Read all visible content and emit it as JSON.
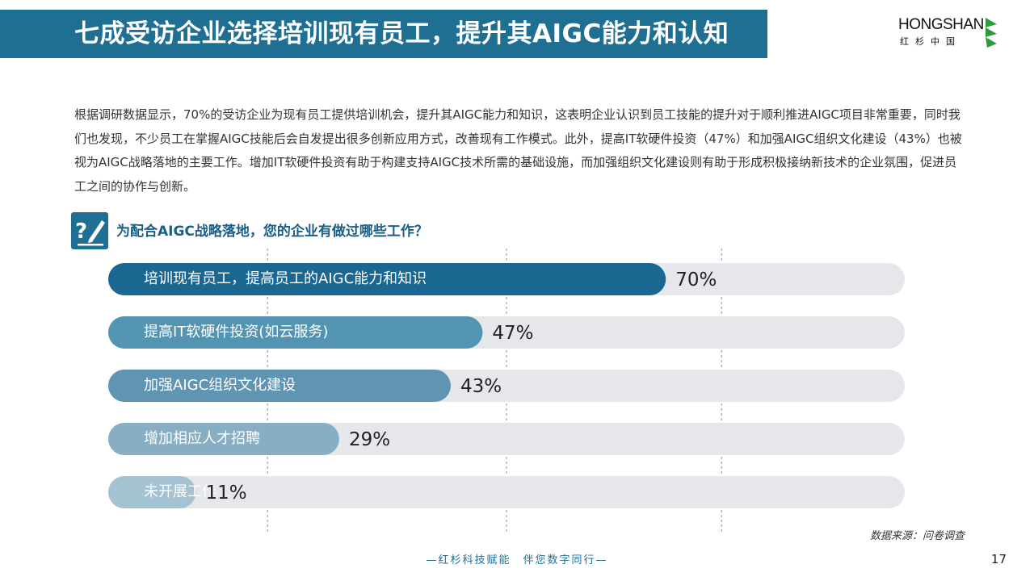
{
  "header": {
    "title": "七成受访企业选择培训现有员工，提升其AIGC能力和认知"
  },
  "logo": {
    "name_en": "HONGSHAN",
    "name_cn": "红杉中国"
  },
  "intro": {
    "text": "根据调研数据显示，70%的受访企业为现有员工提供培训机会，提升其AIGC能力和知识，这表明企业认识到员工技能的提升对于顺利推进AIGC项目非常重要，同时我们也发现，不少员工在掌握AIGC技能后会自发提出很多创新应用方式，改善现有工作模式。此外，提高IT软硬件投资（47%）和加强AIGC组织文化建设（43%）也被视为AIGC战略落地的主要工作。增加IT软硬件投资有助于构建支持AIGC技术所需的基础设施，而加强组织文化建设则有助于形成积极接纳新技术的企业氛围，促进员工之间的协作与创新。"
  },
  "question": {
    "text": "为配合AIGC战略落地，您的企业有做过哪些工作？"
  },
  "chart_data": {
    "type": "bar",
    "orientation": "horizontal",
    "xlim": [
      0,
      100
    ],
    "categories": [
      "培训现有员工，提高员工的AIGC能力和知识",
      "提高IT软硬件投资(如云服务)",
      "加强AIGC组织文化建设",
      "增加相应人才招聘",
      "未开展工作"
    ],
    "values": [
      70,
      47,
      43,
      29,
      11
    ],
    "value_labels": [
      "70%",
      "47%",
      "43%",
      "29%",
      "11%"
    ],
    "bar_colors": [
      "#1a6791",
      "#5494b3",
      "#5f94b2",
      "#88aec3",
      "#a5c2d2"
    ],
    "track_color": "#e5e7ea",
    "grid_color": "#7f95a3"
  },
  "source": {
    "text": "数据来源：问卷调查"
  },
  "footer": {
    "slogan": "—红杉科技赋能　伴您数字同行—",
    "page_number": "17"
  }
}
